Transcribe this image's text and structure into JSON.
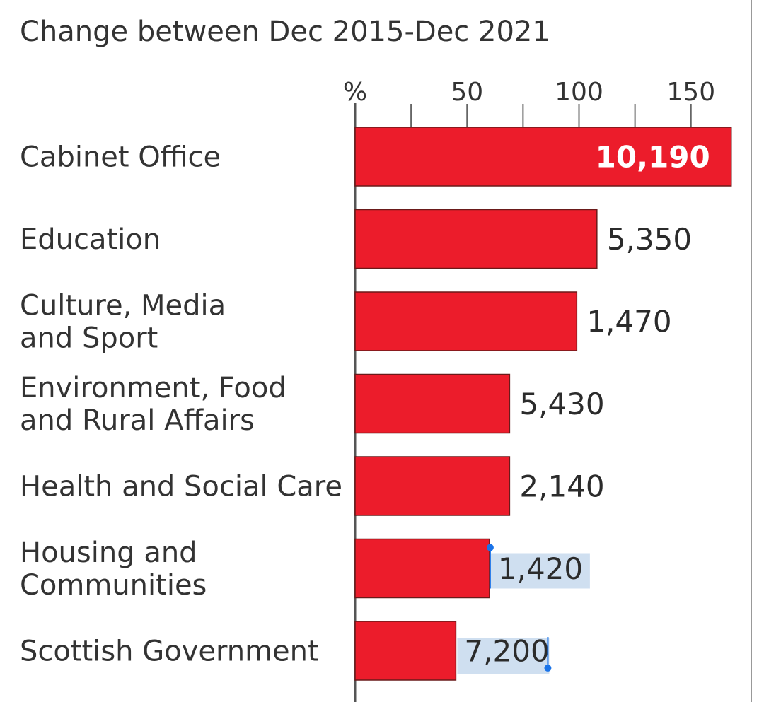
{
  "chart_data": {
    "type": "bar",
    "orientation": "horizontal",
    "title": "Change between Dec 2015-Dec 2021",
    "xlabel": "%",
    "xlim": [
      0,
      170
    ],
    "xticks": [
      0,
      25,
      50,
      75,
      100,
      125,
      150
    ],
    "xtick_labels": [
      "%",
      "50",
      "100",
      "150"
    ],
    "categories": [
      [
        "Cabinet Office"
      ],
      [
        "Education"
      ],
      [
        "Culture, Media",
        "and Sport"
      ],
      [
        "Environment, Food",
        "and Rural Affairs"
      ],
      [
        "Health and Social Care"
      ],
      [
        "Housing and",
        "Communities"
      ],
      [
        "Scottish Government"
      ]
    ],
    "values": [
      168,
      108,
      99,
      69,
      69,
      60,
      45
    ],
    "data_labels": [
      "10,190",
      "5,350",
      "1,470",
      "5,430",
      "2,140",
      "1,420",
      "7,200"
    ],
    "selected_labels": [
      5,
      6
    ],
    "colors": {
      "bar": "#ec1c2b",
      "text": "#333333",
      "selection": "#cfdff0",
      "handle": "#1a73e8"
    }
  }
}
